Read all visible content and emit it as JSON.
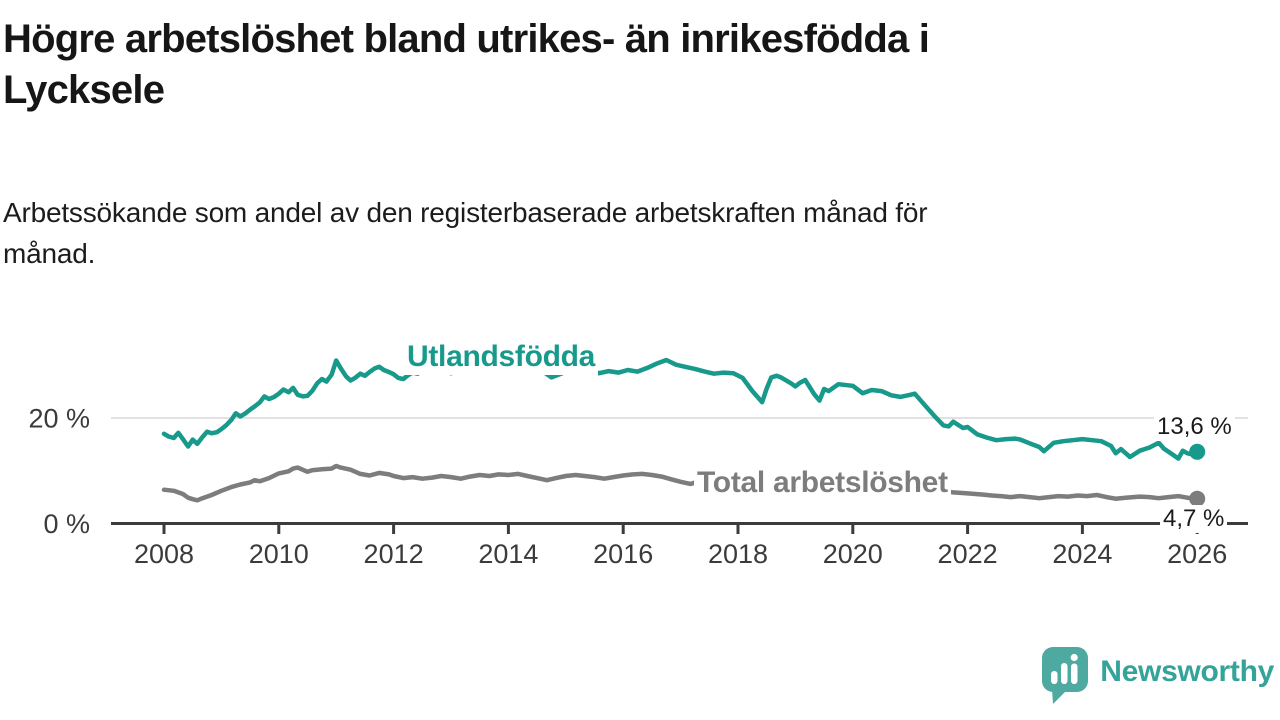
{
  "header": {
    "title_lines": [
      "Högre arbetslöshet bland utrikes- än inrikesfödda i",
      "Lycksele"
    ],
    "subtitle_lines": [
      "Arbetssökande som andel av den registerbaserade arbetskraften månad för",
      "månad."
    ]
  },
  "chart_data": {
    "type": "line",
    "unit": "%",
    "x_axis": {
      "min": 2008,
      "max": 2026.9,
      "ticks": [
        2008,
        2010,
        2012,
        2014,
        2016,
        2018,
        2020,
        2022,
        2024,
        2026
      ]
    },
    "y_axis": {
      "min": 0,
      "max": 34,
      "ticks": [
        {
          "value": 0,
          "label": "0 %"
        },
        {
          "value": 20,
          "label": "20 %"
        }
      ],
      "grid_on_nonzero": true
    },
    "style": {
      "axis_color": "#3c3c3c",
      "grid_color": "#d8d8d8",
      "tick_label_color": "#3b3b3b",
      "line_width": 4.5
    },
    "series": [
      {
        "name": "Utlandsfödda",
        "color": "#17998b",
        "end_label": "13,6 %",
        "end_value": 13.6,
        "points": [
          [
            2008.0,
            17.0
          ],
          [
            2008.08,
            16.5
          ],
          [
            2008.17,
            16.2
          ],
          [
            2008.25,
            17.2
          ],
          [
            2008.33,
            16.0
          ],
          [
            2008.42,
            14.6
          ],
          [
            2008.5,
            15.9
          ],
          [
            2008.58,
            15.1
          ],
          [
            2008.67,
            16.4
          ],
          [
            2008.75,
            17.4
          ],
          [
            2008.83,
            17.1
          ],
          [
            2008.92,
            17.3
          ],
          [
            2009.0,
            17.9
          ],
          [
            2009.08,
            18.6
          ],
          [
            2009.17,
            19.6
          ],
          [
            2009.25,
            20.9
          ],
          [
            2009.33,
            20.3
          ],
          [
            2009.42,
            20.9
          ],
          [
            2009.5,
            21.6
          ],
          [
            2009.58,
            22.2
          ],
          [
            2009.67,
            23.0
          ],
          [
            2009.75,
            24.1
          ],
          [
            2009.83,
            23.6
          ],
          [
            2009.92,
            24.0
          ],
          [
            2010.0,
            24.6
          ],
          [
            2010.08,
            25.4
          ],
          [
            2010.17,
            24.9
          ],
          [
            2010.25,
            25.7
          ],
          [
            2010.33,
            24.4
          ],
          [
            2010.42,
            24.1
          ],
          [
            2010.5,
            24.2
          ],
          [
            2010.58,
            25.1
          ],
          [
            2010.67,
            26.6
          ],
          [
            2010.75,
            27.4
          ],
          [
            2010.83,
            26.9
          ],
          [
            2010.92,
            28.2
          ],
          [
            2011.0,
            30.9
          ],
          [
            2011.08,
            29.4
          ],
          [
            2011.17,
            27.9
          ],
          [
            2011.25,
            27.1
          ],
          [
            2011.33,
            27.6
          ],
          [
            2011.42,
            28.4
          ],
          [
            2011.5,
            28.0
          ],
          [
            2011.58,
            28.7
          ],
          [
            2011.67,
            29.4
          ],
          [
            2011.75,
            29.7
          ],
          [
            2011.83,
            29.1
          ],
          [
            2011.92,
            28.7
          ],
          [
            2012.0,
            28.3
          ],
          [
            2012.08,
            27.6
          ],
          [
            2012.17,
            27.4
          ],
          [
            2012.25,
            28.1
          ],
          [
            2012.33,
            28.6
          ],
          [
            2012.42,
            28.4
          ],
          [
            2012.5,
            28.9
          ],
          [
            2012.58,
            29.3
          ],
          [
            2012.67,
            29.0
          ],
          [
            2012.75,
            29.5
          ],
          [
            2012.83,
            29.1
          ],
          [
            2012.92,
            28.8
          ],
          [
            2013.0,
            28.5
          ],
          [
            2013.17,
            29.0
          ],
          [
            2013.33,
            29.6
          ],
          [
            2013.5,
            29.3
          ],
          [
            2013.67,
            28.8
          ],
          [
            2013.83,
            29.1
          ],
          [
            2014.0,
            29.4
          ],
          [
            2014.17,
            29.9
          ],
          [
            2014.33,
            30.5
          ],
          [
            2014.42,
            30.7
          ],
          [
            2014.58,
            29.0
          ],
          [
            2014.75,
            27.7
          ],
          [
            2014.92,
            28.4
          ],
          [
            2015.08,
            29.3
          ],
          [
            2015.25,
            29.7
          ],
          [
            2015.42,
            29.1
          ],
          [
            2015.58,
            28.5
          ],
          [
            2015.75,
            28.9
          ],
          [
            2015.92,
            28.6
          ],
          [
            2016.08,
            29.1
          ],
          [
            2016.25,
            28.8
          ],
          [
            2016.42,
            29.5
          ],
          [
            2016.58,
            30.3
          ],
          [
            2016.75,
            31.0
          ],
          [
            2016.92,
            30.1
          ],
          [
            2017.08,
            29.7
          ],
          [
            2017.25,
            29.3
          ],
          [
            2017.42,
            28.8
          ],
          [
            2017.58,
            28.4
          ],
          [
            2017.75,
            28.6
          ],
          [
            2017.92,
            28.5
          ],
          [
            2018.08,
            27.6
          ],
          [
            2018.25,
            25.1
          ],
          [
            2018.42,
            23.0
          ],
          [
            2018.5,
            25.6
          ],
          [
            2018.58,
            27.7
          ],
          [
            2018.67,
            28.0
          ],
          [
            2018.75,
            27.7
          ],
          [
            2018.92,
            26.6
          ],
          [
            2019.0,
            26.0
          ],
          [
            2019.08,
            26.7
          ],
          [
            2019.17,
            27.2
          ],
          [
            2019.33,
            24.5
          ],
          [
            2019.42,
            23.3
          ],
          [
            2019.5,
            25.5
          ],
          [
            2019.58,
            25.1
          ],
          [
            2019.75,
            26.4
          ],
          [
            2019.92,
            26.2
          ],
          [
            2020.0,
            26.1
          ],
          [
            2020.17,
            24.7
          ],
          [
            2020.33,
            25.3
          ],
          [
            2020.5,
            25.1
          ],
          [
            2020.67,
            24.3
          ],
          [
            2020.83,
            24.0
          ],
          [
            2021.0,
            24.4
          ],
          [
            2021.08,
            24.6
          ],
          [
            2021.25,
            22.5
          ],
          [
            2021.42,
            20.4
          ],
          [
            2021.58,
            18.6
          ],
          [
            2021.67,
            18.4
          ],
          [
            2021.75,
            19.3
          ],
          [
            2021.92,
            18.1
          ],
          [
            2022.0,
            18.3
          ],
          [
            2022.17,
            16.9
          ],
          [
            2022.33,
            16.3
          ],
          [
            2022.5,
            15.8
          ],
          [
            2022.67,
            16.0
          ],
          [
            2022.83,
            16.1
          ],
          [
            2022.92,
            15.9
          ],
          [
            2023.08,
            15.2
          ],
          [
            2023.25,
            14.5
          ],
          [
            2023.33,
            13.7
          ],
          [
            2023.5,
            15.3
          ],
          [
            2023.67,
            15.6
          ],
          [
            2023.83,
            15.8
          ],
          [
            2024.0,
            16.0
          ],
          [
            2024.17,
            15.8
          ],
          [
            2024.33,
            15.6
          ],
          [
            2024.5,
            14.7
          ],
          [
            2024.58,
            13.3
          ],
          [
            2024.67,
            14.1
          ],
          [
            2024.83,
            12.6
          ],
          [
            2025.0,
            13.8
          ],
          [
            2025.17,
            14.4
          ],
          [
            2025.33,
            15.3
          ],
          [
            2025.42,
            14.2
          ],
          [
            2025.58,
            13.0
          ],
          [
            2025.67,
            12.3
          ],
          [
            2025.75,
            13.8
          ],
          [
            2025.83,
            13.3
          ],
          [
            2025.92,
            13.1
          ],
          [
            2026.0,
            13.6
          ]
        ]
      },
      {
        "name": "Total arbetslöshet",
        "color": "#7d7d7d",
        "end_label": "4,7 %",
        "end_value": 4.7,
        "points": [
          [
            2008.0,
            6.4
          ],
          [
            2008.17,
            6.2
          ],
          [
            2008.33,
            5.6
          ],
          [
            2008.42,
            4.9
          ],
          [
            2008.5,
            4.6
          ],
          [
            2008.58,
            4.4
          ],
          [
            2008.67,
            4.8
          ],
          [
            2008.83,
            5.4
          ],
          [
            2009.0,
            6.2
          ],
          [
            2009.17,
            6.9
          ],
          [
            2009.33,
            7.4
          ],
          [
            2009.5,
            7.8
          ],
          [
            2009.58,
            8.2
          ],
          [
            2009.67,
            8.0
          ],
          [
            2009.83,
            8.6
          ],
          [
            2010.0,
            9.5
          ],
          [
            2010.17,
            9.9
          ],
          [
            2010.25,
            10.4
          ],
          [
            2010.33,
            10.6
          ],
          [
            2010.5,
            9.8
          ],
          [
            2010.58,
            10.1
          ],
          [
            2010.75,
            10.3
          ],
          [
            2010.92,
            10.4
          ],
          [
            2011.0,
            10.9
          ],
          [
            2011.08,
            10.6
          ],
          [
            2011.25,
            10.2
          ],
          [
            2011.42,
            9.4
          ],
          [
            2011.58,
            9.1
          ],
          [
            2011.75,
            9.6
          ],
          [
            2011.92,
            9.3
          ],
          [
            2012.0,
            9.0
          ],
          [
            2012.17,
            8.6
          ],
          [
            2012.33,
            8.8
          ],
          [
            2012.5,
            8.5
          ],
          [
            2012.67,
            8.7
          ],
          [
            2012.83,
            9.0
          ],
          [
            2013.0,
            8.8
          ],
          [
            2013.17,
            8.5
          ],
          [
            2013.33,
            8.9
          ],
          [
            2013.5,
            9.2
          ],
          [
            2013.67,
            9.0
          ],
          [
            2013.83,
            9.3
          ],
          [
            2014.0,
            9.2
          ],
          [
            2014.17,
            9.4
          ],
          [
            2014.33,
            9.0
          ],
          [
            2014.5,
            8.6
          ],
          [
            2014.67,
            8.2
          ],
          [
            2014.83,
            8.6
          ],
          [
            2015.0,
            9.0
          ],
          [
            2015.17,
            9.2
          ],
          [
            2015.33,
            9.0
          ],
          [
            2015.5,
            8.8
          ],
          [
            2015.67,
            8.5
          ],
          [
            2015.83,
            8.8
          ],
          [
            2016.0,
            9.1
          ],
          [
            2016.17,
            9.3
          ],
          [
            2016.33,
            9.4
          ],
          [
            2016.5,
            9.2
          ],
          [
            2016.67,
            8.9
          ],
          [
            2016.83,
            8.4
          ],
          [
            2017.0,
            7.9
          ],
          [
            2017.17,
            7.5
          ],
          [
            2017.33,
            8.0
          ],
          [
            2017.5,
            8.5
          ],
          [
            2017.67,
            8.7
          ],
          [
            2017.83,
            8.5
          ],
          [
            2018.0,
            8.2
          ],
          [
            2018.25,
            7.9
          ],
          [
            2018.5,
            7.5
          ],
          [
            2018.75,
            7.2
          ],
          [
            2019.0,
            7.0
          ],
          [
            2019.25,
            6.8
          ],
          [
            2019.5,
            6.6
          ],
          [
            2019.75,
            6.5
          ],
          [
            2020.0,
            6.7
          ],
          [
            2020.25,
            7.2
          ],
          [
            2020.5,
            7.4
          ],
          [
            2020.75,
            7.1
          ],
          [
            2021.0,
            6.9
          ],
          [
            2021.25,
            6.5
          ],
          [
            2021.5,
            6.2
          ],
          [
            2021.75,
            5.9
          ],
          [
            2022.0,
            5.7
          ],
          [
            2022.25,
            5.5
          ],
          [
            2022.42,
            5.3
          ],
          [
            2022.58,
            5.2
          ],
          [
            2022.75,
            5.0
          ],
          [
            2022.92,
            5.2
          ],
          [
            2023.08,
            5.0
          ],
          [
            2023.25,
            4.8
          ],
          [
            2023.42,
            5.0
          ],
          [
            2023.58,
            5.2
          ],
          [
            2023.75,
            5.1
          ],
          [
            2023.92,
            5.3
          ],
          [
            2024.08,
            5.2
          ],
          [
            2024.25,
            5.4
          ],
          [
            2024.42,
            5.0
          ],
          [
            2024.58,
            4.7
          ],
          [
            2024.75,
            4.9
          ],
          [
            2025.0,
            5.1
          ],
          [
            2025.17,
            5.0
          ],
          [
            2025.33,
            4.8
          ],
          [
            2025.5,
            5.0
          ],
          [
            2025.67,
            5.2
          ],
          [
            2025.83,
            4.9
          ],
          [
            2026.0,
            4.7
          ]
        ]
      }
    ]
  },
  "branding": {
    "logo_text": "Newsworthy",
    "text_color": "#34a399",
    "bubble_color": "#4ea9a0"
  }
}
